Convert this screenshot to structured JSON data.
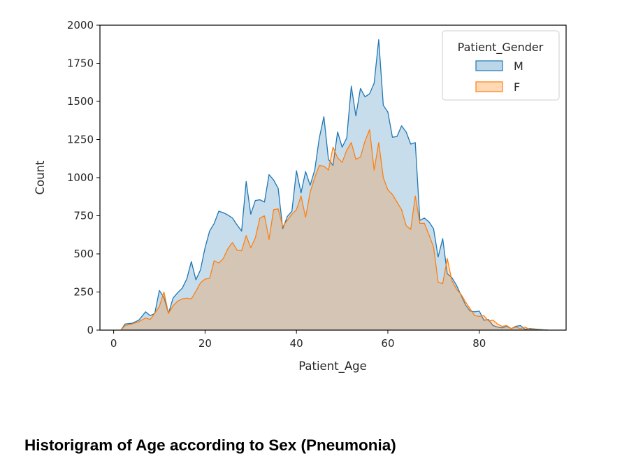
{
  "caption": "Historigram of Age according to Sex (Pneumonia)",
  "chart_data": {
    "type": "area",
    "xlabel": "Patient_Age",
    "ylabel": "Count",
    "xlim": [
      -3,
      99
    ],
    "ylim": [
      0,
      2000
    ],
    "xticks": [
      0,
      20,
      40,
      60,
      80
    ],
    "yticks": [
      0,
      250,
      500,
      750,
      1000,
      1250,
      1500,
      1750,
      2000
    ],
    "grid": false,
    "legend": {
      "title": "Patient_Gender",
      "placement": "top-right"
    },
    "series": [
      {
        "name": "M",
        "color": "#1f77b4",
        "points": [
          [
            1.6,
            0
          ],
          [
            2.5,
            40
          ],
          [
            4,
            45
          ],
          [
            5.5,
            65
          ],
          [
            7,
            120
          ],
          [
            8,
            95
          ],
          [
            9,
            110
          ],
          [
            10,
            260
          ],
          [
            11,
            215
          ],
          [
            12,
            110
          ],
          [
            13,
            210
          ],
          [
            14,
            245
          ],
          [
            15,
            275
          ],
          [
            16,
            335
          ],
          [
            17,
            450
          ],
          [
            18,
            330
          ],
          [
            19,
            395
          ],
          [
            20,
            540
          ],
          [
            21,
            650
          ],
          [
            22,
            700
          ],
          [
            23,
            780
          ],
          [
            24,
            770
          ],
          [
            25,
            755
          ],
          [
            26,
            735
          ],
          [
            27,
            690
          ],
          [
            28,
            650
          ],
          [
            29,
            975
          ],
          [
            30,
            760
          ],
          [
            31,
            850
          ],
          [
            32,
            855
          ],
          [
            33,
            840
          ],
          [
            34,
            1020
          ],
          [
            35,
            985
          ],
          [
            36,
            930
          ],
          [
            37,
            665
          ],
          [
            38,
            745
          ],
          [
            39,
            780
          ],
          [
            40,
            1045
          ],
          [
            41,
            900
          ],
          [
            42,
            1040
          ],
          [
            43,
            950
          ],
          [
            44,
            1050
          ],
          [
            45,
            1260
          ],
          [
            46,
            1400
          ],
          [
            47,
            1120
          ],
          [
            48,
            1080
          ],
          [
            49,
            1300
          ],
          [
            50,
            1200
          ],
          [
            51,
            1260
          ],
          [
            52,
            1600
          ],
          [
            53,
            1405
          ],
          [
            54,
            1585
          ],
          [
            55,
            1530
          ],
          [
            56,
            1550
          ],
          [
            57,
            1620
          ],
          [
            58,
            1905
          ],
          [
            59,
            1475
          ],
          [
            60,
            1430
          ],
          [
            61,
            1265
          ],
          [
            62,
            1270
          ],
          [
            63,
            1340
          ],
          [
            64,
            1300
          ],
          [
            65,
            1220
          ],
          [
            66,
            1230
          ],
          [
            67,
            720
          ],
          [
            68,
            735
          ],
          [
            69,
            710
          ],
          [
            70,
            665
          ],
          [
            71,
            480
          ],
          [
            72,
            600
          ],
          [
            73,
            370
          ],
          [
            74,
            345
          ],
          [
            75,
            295
          ],
          [
            76,
            230
          ],
          [
            77,
            165
          ],
          [
            78,
            125
          ],
          [
            79,
            120
          ],
          [
            80,
            125
          ],
          [
            81,
            65
          ],
          [
            82,
            70
          ],
          [
            83,
            30
          ],
          [
            84,
            20
          ],
          [
            85,
            15
          ],
          [
            86,
            25
          ],
          [
            87,
            10
          ],
          [
            88,
            25
          ],
          [
            89,
            30
          ],
          [
            90,
            5
          ],
          [
            91,
            10
          ],
          [
            95,
            0
          ]
        ]
      },
      {
        "name": "F",
        "color": "#ff7f0e",
        "points": [
          [
            1.6,
            0
          ],
          [
            2.5,
            30
          ],
          [
            4,
            40
          ],
          [
            5.5,
            55
          ],
          [
            7,
            80
          ],
          [
            8,
            70
          ],
          [
            9,
            110
          ],
          [
            10,
            155
          ],
          [
            11,
            250
          ],
          [
            12,
            110
          ],
          [
            13,
            160
          ],
          [
            14,
            190
          ],
          [
            15,
            205
          ],
          [
            16,
            210
          ],
          [
            17,
            205
          ],
          [
            18,
            255
          ],
          [
            19,
            310
          ],
          [
            20,
            335
          ],
          [
            21,
            340
          ],
          [
            22,
            455
          ],
          [
            23,
            440
          ],
          [
            24,
            470
          ],
          [
            25,
            535
          ],
          [
            26,
            575
          ],
          [
            27,
            525
          ],
          [
            28,
            520
          ],
          [
            29,
            620
          ],
          [
            30,
            540
          ],
          [
            31,
            605
          ],
          [
            32,
            735
          ],
          [
            33,
            750
          ],
          [
            34,
            595
          ],
          [
            35,
            790
          ],
          [
            36,
            795
          ],
          [
            37,
            680
          ],
          [
            38,
            720
          ],
          [
            39,
            760
          ],
          [
            40,
            790
          ],
          [
            41,
            880
          ],
          [
            42,
            740
          ],
          [
            43,
            905
          ],
          [
            44,
            1000
          ],
          [
            45,
            1080
          ],
          [
            46,
            1075
          ],
          [
            47,
            1050
          ],
          [
            48,
            1200
          ],
          [
            49,
            1130
          ],
          [
            50,
            1100
          ],
          [
            51,
            1180
          ],
          [
            52,
            1230
          ],
          [
            53,
            1120
          ],
          [
            54,
            1135
          ],
          [
            55,
            1240
          ],
          [
            56,
            1315
          ],
          [
            57,
            1050
          ],
          [
            58,
            1230
          ],
          [
            59,
            1000
          ],
          [
            60,
            920
          ],
          [
            61,
            890
          ],
          [
            62,
            840
          ],
          [
            63,
            790
          ],
          [
            64,
            685
          ],
          [
            65,
            660
          ],
          [
            66,
            880
          ],
          [
            67,
            700
          ],
          [
            68,
            700
          ],
          [
            69,
            625
          ],
          [
            70,
            545
          ],
          [
            71,
            315
          ],
          [
            72,
            305
          ],
          [
            73,
            470
          ],
          [
            74,
            325
          ],
          [
            75,
            270
          ],
          [
            76,
            235
          ],
          [
            77,
            185
          ],
          [
            78,
            140
          ],
          [
            79,
            95
          ],
          [
            80,
            90
          ],
          [
            81,
            95
          ],
          [
            82,
            60
          ],
          [
            83,
            65
          ],
          [
            84,
            40
          ],
          [
            85,
            25
          ],
          [
            86,
            30
          ],
          [
            87,
            10
          ],
          [
            88,
            20
          ],
          [
            89,
            10
          ],
          [
            90,
            20
          ],
          [
            91,
            5
          ],
          [
            95,
            0
          ]
        ]
      }
    ]
  }
}
